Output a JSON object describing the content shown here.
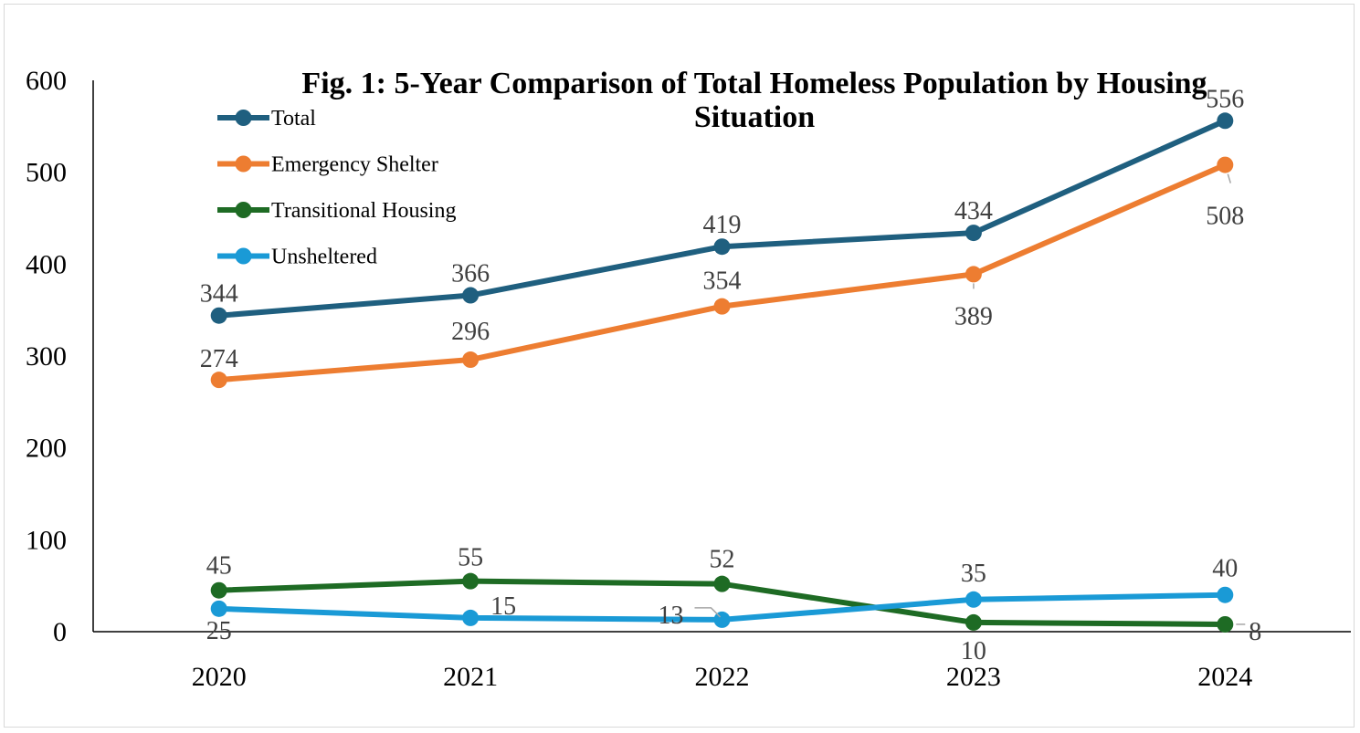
{
  "chart_data": {
    "type": "line",
    "title": "Fig. 1: 5-Year Comparison of Total Homeless Population by Housing Situation",
    "title_lines": [
      "Fig. 1: 5-Year Comparison of Total Homeless Population by Housing",
      "Situation"
    ],
    "categories": [
      "2020",
      "2021",
      "2022",
      "2023",
      "2024"
    ],
    "xlabel": "",
    "ylabel": "",
    "ylim": [
      0,
      600
    ],
    "yticks": [
      0,
      100,
      200,
      300,
      400,
      500,
      600
    ],
    "grid": false,
    "legend_position": "top-left",
    "series": [
      {
        "name": "Total",
        "color": "#1f5f7f",
        "values": [
          344,
          366,
          419,
          434,
          556
        ]
      },
      {
        "name": "Emergency Shelter",
        "color": "#ed7d31",
        "values": [
          274,
          296,
          354,
          389,
          508
        ]
      },
      {
        "name": "Transitional Housing",
        "color": "#1e6b24",
        "values": [
          45,
          55,
          52,
          10,
          8
        ]
      },
      {
        "name": "Unsheltered",
        "color": "#1a9ad6",
        "values": [
          25,
          15,
          13,
          35,
          40
        ]
      }
    ]
  }
}
